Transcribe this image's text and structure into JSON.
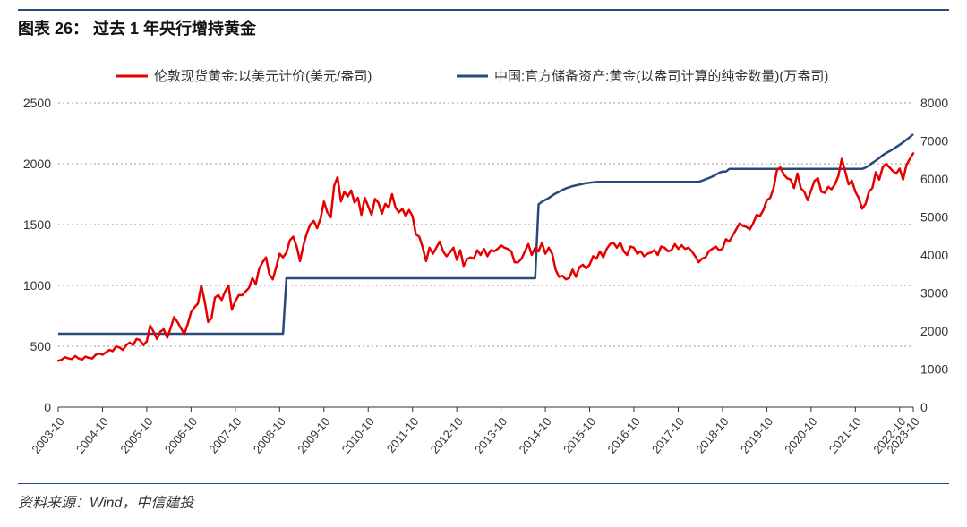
{
  "title": "图表 26：  过去 1 年央行增持黄金",
  "source": "资料来源：Wind，中信建投",
  "legend": {
    "series1": "伦敦现货黄金:以美元计价(美元/盎司)",
    "series2": "中国:官方储备资产:黄金(以盎司计算的纯金数量)(万盎司)"
  },
  "chart": {
    "type": "dual-axis-line",
    "background_color": "#ffffff",
    "grid_color": "#999999",
    "line_colors": {
      "series1": "#e60000",
      "series2": "#2a4a7a"
    },
    "line_widths": {
      "series1": 2.5,
      "series2": 2.5
    },
    "axis_label_fontsize": 14,
    "xlabel_fontsize": 13,
    "y_left": {
      "min": 0,
      "max": 2500,
      "step": 500
    },
    "y_right": {
      "min": 0,
      "max": 8000,
      "step": 1000
    },
    "x_labels": [
      "2003-10",
      "2004-10",
      "2005-10",
      "2006-10",
      "2007-10",
      "2008-10",
      "2009-10",
      "2010-10",
      "2011-10",
      "2012-10",
      "2013-10",
      "2014-10",
      "2015-10",
      "2016-10",
      "2017-10",
      "2018-10",
      "2019-10",
      "2020-10",
      "2021-10",
      "2022-10",
      "2023-10"
    ],
    "series1_y": [
      380,
      390,
      410,
      400,
      395,
      420,
      400,
      390,
      415,
      405,
      400,
      430,
      440,
      430,
      450,
      470,
      460,
      500,
      490,
      470,
      510,
      530,
      510,
      560,
      550,
      510,
      540,
      670,
      620,
      560,
      620,
      640,
      570,
      650,
      740,
      700,
      650,
      600,
      680,
      780,
      820,
      850,
      1000,
      870,
      700,
      730,
      900,
      920,
      880,
      950,
      1000,
      800,
      870,
      920,
      920,
      950,
      980,
      1060,
      1010,
      1140,
      1190,
      1230,
      1090,
      1050,
      1150,
      1260,
      1230,
      1270,
      1370,
      1400,
      1320,
      1200,
      1330,
      1430,
      1500,
      1530,
      1470,
      1550,
      1690,
      1600,
      1560,
      1820,
      1890,
      1690,
      1770,
      1730,
      1780,
      1680,
      1720,
      1580,
      1720,
      1650,
      1580,
      1710,
      1680,
      1590,
      1670,
      1640,
      1750,
      1640,
      1600,
      1630,
      1570,
      1620,
      1570,
      1420,
      1400,
      1310,
      1200,
      1310,
      1260,
      1310,
      1360,
      1280,
      1240,
      1270,
      1310,
      1210,
      1290,
      1160,
      1215,
      1230,
      1220,
      1290,
      1250,
      1300,
      1240,
      1290,
      1280,
      1300,
      1330,
      1310,
      1300,
      1280,
      1190,
      1190,
      1220,
      1280,
      1340,
      1250,
      1310,
      1280,
      1350,
      1260,
      1310,
      1260,
      1130,
      1070,
      1080,
      1050,
      1060,
      1130,
      1070,
      1150,
      1170,
      1140,
      1170,
      1240,
      1220,
      1280,
      1230,
      1300,
      1340,
      1350,
      1310,
      1350,
      1280,
      1250,
      1320,
      1310,
      1260,
      1280,
      1240,
      1260,
      1270,
      1290,
      1250,
      1320,
      1310,
      1280,
      1290,
      1340,
      1300,
      1330,
      1300,
      1310,
      1280,
      1240,
      1190,
      1220,
      1230,
      1280,
      1300,
      1320,
      1290,
      1300,
      1380,
      1360,
      1410,
      1460,
      1510,
      1490,
      1480,
      1460,
      1510,
      1580,
      1570,
      1620,
      1700,
      1720,
      1800,
      1950,
      1970,
      1910,
      1880,
      1870,
      1800,
      1920,
      1800,
      1770,
      1700,
      1780,
      1860,
      1880,
      1770,
      1760,
      1810,
      1790,
      1830,
      1900,
      2040,
      1940,
      1830,
      1860,
      1770,
      1720,
      1630,
      1670,
      1770,
      1800,
      1930,
      1870,
      1970,
      2000,
      1970,
      1940,
      1920,
      1960,
      1870,
      1990,
      2040,
      2085
    ],
    "series2_y": [
      1929,
      1929,
      1929,
      1929,
      1929,
      1929,
      1929,
      1929,
      1929,
      1929,
      1929,
      1929,
      1929,
      1929,
      1929,
      1929,
      1929,
      1929,
      1929,
      1929,
      1929,
      1929,
      1929,
      1929,
      1929,
      1929,
      1929,
      1929,
      1929,
      1929,
      1929,
      1929,
      1929,
      1929,
      1929,
      1929,
      1929,
      1929,
      1929,
      1929,
      1929,
      1929,
      1929,
      1929,
      1929,
      1929,
      1929,
      1929,
      1929,
      1929,
      1929,
      1929,
      1929,
      1929,
      1929,
      1929,
      1929,
      1929,
      1929,
      1929,
      1929,
      1929,
      1929,
      1929,
      1929,
      1929,
      1929,
      3389,
      3389,
      3389,
      3389,
      3389,
      3389,
      3389,
      3389,
      3389,
      3389,
      3389,
      3389,
      3389,
      3389,
      3389,
      3389,
      3389,
      3389,
      3389,
      3389,
      3389,
      3389,
      3389,
      3389,
      3389,
      3389,
      3389,
      3389,
      3389,
      3389,
      3389,
      3389,
      3389,
      3389,
      3389,
      3389,
      3389,
      3389,
      3389,
      3389,
      3389,
      3389,
      3389,
      3389,
      3389,
      3389,
      3389,
      3389,
      3389,
      3389,
      3389,
      3389,
      3389,
      3389,
      3389,
      3389,
      3389,
      3389,
      3389,
      3389,
      3389,
      3389,
      3389,
      3389,
      3389,
      3389,
      3389,
      3389,
      3389,
      3389,
      3389,
      3389,
      3389,
      3389,
      5332,
      5400,
      5450,
      5500,
      5560,
      5620,
      5660,
      5710,
      5750,
      5780,
      5810,
      5830,
      5850,
      5870,
      5890,
      5900,
      5910,
      5920,
      5924,
      5924,
      5924,
      5924,
      5924,
      5924,
      5924,
      5924,
      5924,
      5924,
      5924,
      5924,
      5924,
      5924,
      5924,
      5924,
      5924,
      5924,
      5924,
      5924,
      5924,
      5924,
      5924,
      5924,
      5924,
      5924,
      5924,
      5924,
      5924,
      5924,
      5956,
      5990,
      6024,
      6062,
      6110,
      6161,
      6194,
      6194,
      6264,
      6264,
      6264,
      6264,
      6264,
      6264,
      6264,
      6264,
      6264,
      6264,
      6264,
      6264,
      6264,
      6264,
      6264,
      6264,
      6264,
      6264,
      6264,
      6264,
      6264,
      6264,
      6264,
      6264,
      6264,
      6264,
      6264,
      6264,
      6264,
      6264,
      6264,
      6264,
      6264,
      6264,
      6264,
      6264,
      6264,
      6264,
      6264,
      6264,
      6300,
      6350,
      6423,
      6480,
      6550,
      6620,
      6680,
      6730,
      6780,
      6840,
      6900,
      6960,
      7030,
      7100,
      7180
    ]
  }
}
